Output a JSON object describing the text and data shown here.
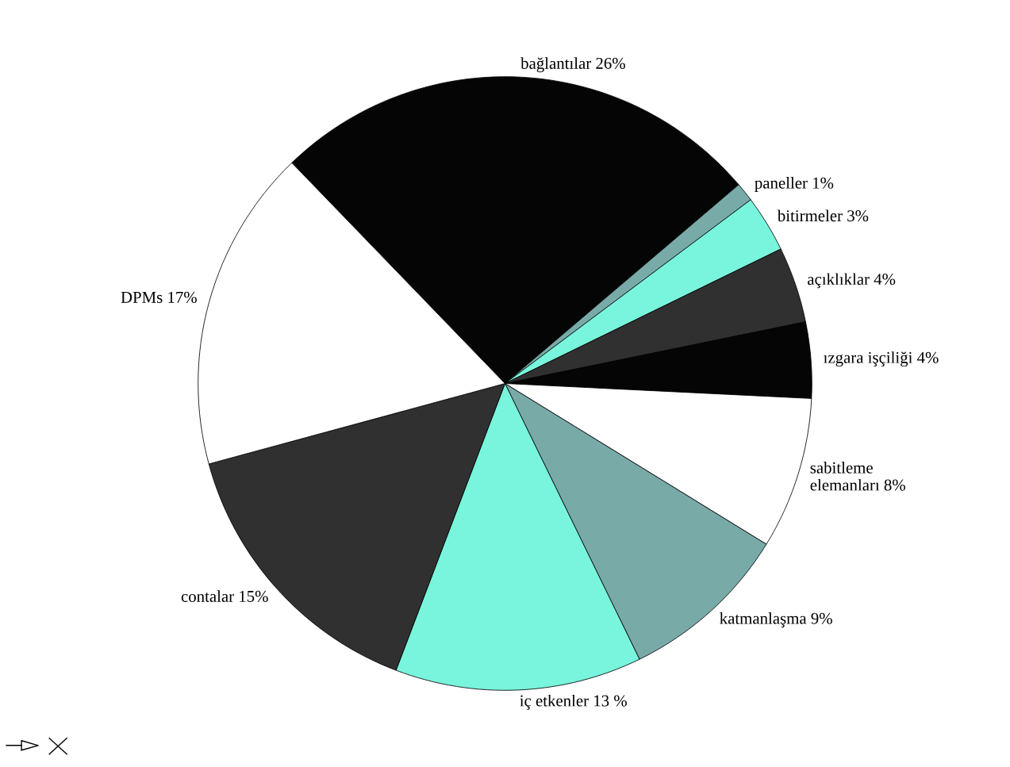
{
  "chart_data": {
    "type": "pie",
    "categories": [
      "bağlantılar",
      "paneller",
      "bitirmeler",
      "açıklıklar",
      "ızgara işçiliği",
      "sabitleme\nelemanları",
      "katmanlaşma",
      "iç etkenler",
      "contalar",
      "DPMs"
    ],
    "values": [
      26,
      1,
      3,
      4,
      4,
      8,
      9,
      13,
      15,
      17
    ],
    "value_labels": [
      "26%",
      "1%",
      "3%",
      "4%",
      "4%",
      "8%",
      "9%",
      "13 %",
      "15%",
      "17%"
    ],
    "colors": [
      "#050505",
      "#78aaa8",
      "#78f5dc",
      "#303030",
      "#050505",
      "#ffffff",
      "#78aaa8",
      "#78f5dc",
      "#303030",
      "#ffffff"
    ]
  }
}
